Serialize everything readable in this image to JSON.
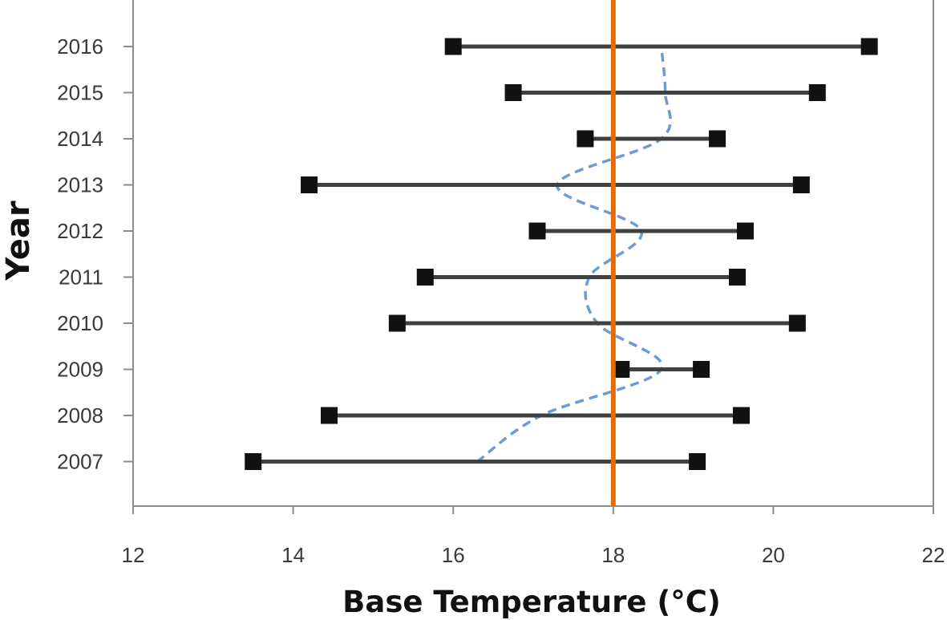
{
  "chart_data": {
    "type": "scatter",
    "xlabel": "Base Temperature (°C)",
    "ylabel": "Year",
    "xlim": [
      12,
      22
    ],
    "xticks": [
      12,
      14,
      16,
      18,
      20,
      22
    ],
    "years": [
      "2016",
      "2015",
      "2014",
      "2013",
      "2012",
      "2011",
      "2010",
      "2009",
      "2008",
      "2007"
    ],
    "ranges": [
      {
        "year": "2016",
        "low": 16.0,
        "high": 21.2
      },
      {
        "year": "2015",
        "low": 16.75,
        "high": 20.55
      },
      {
        "year": "2014",
        "low": 17.65,
        "high": 19.3
      },
      {
        "year": "2013",
        "low": 14.2,
        "high": 20.35
      },
      {
        "year": "2012",
        "low": 17.05,
        "high": 19.65
      },
      {
        "year": "2011",
        "low": 15.65,
        "high": 19.55
      },
      {
        "year": "2010",
        "low": 15.3,
        "high": 20.3
      },
      {
        "year": "2009",
        "low": 18.1,
        "high": 19.1
      },
      {
        "year": "2008",
        "low": 14.45,
        "high": 19.6
      },
      {
        "year": "2007",
        "low": 13.5,
        "high": 19.05
      }
    ],
    "reference_line": {
      "x": 18,
      "color": "#e36c09"
    },
    "dashed_curve": {
      "color": "#6f9bd5",
      "points": [
        {
          "year": "2007",
          "x": 16.3
        },
        {
          "year": "2008",
          "x": 17.1
        },
        {
          "year": "2009",
          "x": 18.6
        },
        {
          "year": "2010",
          "x": 17.8
        },
        {
          "year": "2011",
          "x": 17.7
        },
        {
          "year": "2012",
          "x": 18.35
        },
        {
          "year": "2013",
          "x": 17.3
        },
        {
          "year": "2014",
          "x": 18.6
        },
        {
          "year": "2015",
          "x": 18.65
        },
        {
          "year": "2016",
          "x": 18.6
        }
      ]
    },
    "colors": {
      "range_line": "#404040",
      "marker": "#111111",
      "axis": "#8c8c8c"
    },
    "grid": false,
    "legend": "none"
  }
}
